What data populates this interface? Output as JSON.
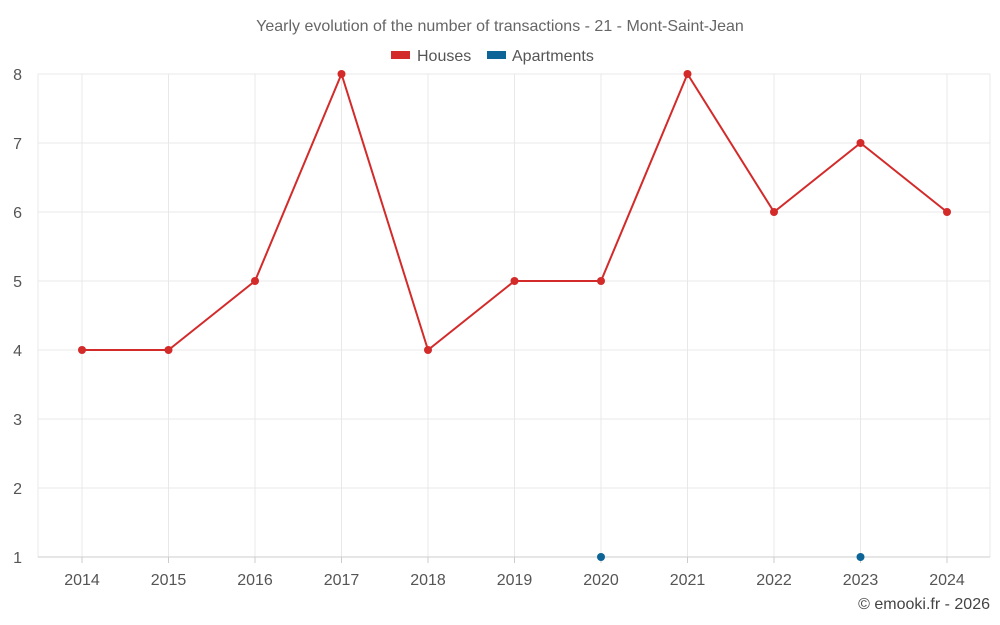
{
  "colors": {
    "houses": "#d32a2a",
    "apartments": "#0d6496",
    "grid": "#e8e8e8"
  },
  "chart_data": {
    "type": "line",
    "title": "Yearly evolution of the number of transactions - 21 - Mont-Saint-Jean",
    "xlabel": "",
    "ylabel": "",
    "categories": [
      "2014",
      "2015",
      "2016",
      "2017",
      "2018",
      "2019",
      "2020",
      "2021",
      "2022",
      "2023",
      "2024"
    ],
    "ylim": [
      1,
      8
    ],
    "yticks": [
      "1",
      "2",
      "3",
      "4",
      "5",
      "6",
      "7",
      "8"
    ],
    "legend_position": "top-center",
    "grid": true,
    "series": [
      {
        "name": "Houses",
        "color": "#d32a2a",
        "values": [
          4,
          4,
          5,
          8,
          4,
          5,
          5,
          8,
          6,
          7,
          6
        ]
      },
      {
        "name": "Apartments",
        "color": "#0d6496",
        "values": [
          null,
          null,
          null,
          null,
          null,
          null,
          1,
          null,
          null,
          1,
          null
        ]
      }
    ]
  },
  "credit": "© emooki.fr - 2026"
}
